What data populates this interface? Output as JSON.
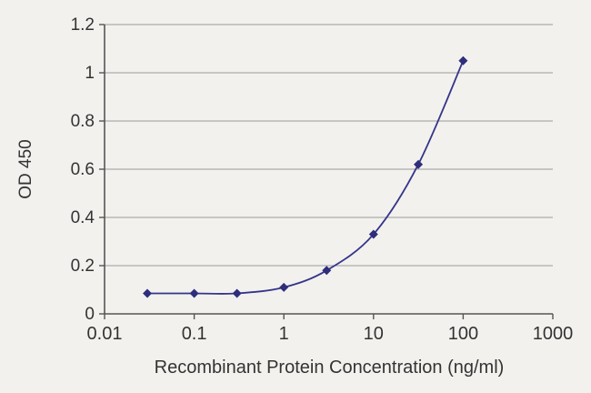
{
  "chart_data": {
    "type": "line",
    "title": "",
    "xlabel": "Recombinant Protein Concentration (ng/ml)",
    "ylabel": "OD 450",
    "x_scale": "log",
    "xlim": [
      0.01,
      1000
    ],
    "ylim": [
      0,
      1.2
    ],
    "x_ticks": [
      0.01,
      0.1,
      1,
      10,
      100,
      1000
    ],
    "x_tick_labels": [
      "0.01",
      "0.1",
      "1",
      "10",
      "100",
      "1000"
    ],
    "y_ticks": [
      0,
      0.2,
      0.4,
      0.6,
      0.8,
      1,
      1.2
    ],
    "y_tick_labels": [
      "0",
      "0.2",
      "0.4",
      "0.6",
      "0.8",
      "1",
      "1.2"
    ],
    "grid": "horizontal",
    "legend": "none",
    "series": [
      {
        "name": "OD 450",
        "marker": "diamond",
        "x": [
          0.03,
          0.1,
          0.3,
          1,
          3,
          10,
          31.6,
          100
        ],
        "y": [
          0.085,
          0.085,
          0.085,
          0.11,
          0.18,
          0.33,
          0.62,
          1.05
        ]
      }
    ],
    "style": {
      "background": "#f2f1ee",
      "line_color": "#35358a",
      "marker_color": "#2e2e7c",
      "grid_color": "#9b9b9b",
      "axis_color": "#555555",
      "text_color": "#333333"
    }
  }
}
